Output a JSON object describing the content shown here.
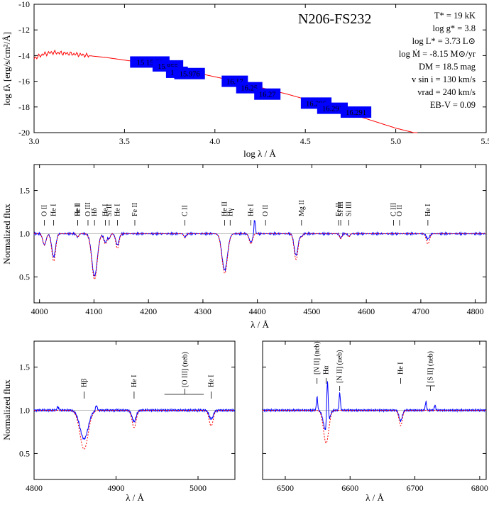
{
  "colors": {
    "model": "#ff0000",
    "observed": "#0000ff",
    "sed_box": "#0000ff",
    "sed_box_text": "#ff99cc",
    "continuum": "#aaaaaa"
  },
  "star": {
    "name": "N206-FS232"
  },
  "params": [
    "T* = 19 kK",
    "log g* = 3.8",
    "log L* = 3.73 L⊙",
    "log Ṁ = -8.15 M⊙/yr",
    "DM = 18.5 mag",
    "v sin i = 130 km/s",
    "vrad = 240 km/s",
    "EB-V = 0.09"
  ],
  "sed_labels": [
    "15",
    "15.72",
    "15.855",
    "16.2",
    "15.976",
    "16.17",
    "16.25",
    "16.27",
    "16.286",
    "16.291",
    "16.291"
  ],
  "line_labels_main": [
    "O II",
    "He I",
    "He I",
    "Fe II",
    "O III",
    "Hδ",
    "He I",
    "Si II",
    "He I",
    "Fe II",
    "C II",
    "He II",
    "Hγ",
    "He I",
    "O II",
    "Mg II",
    "Fe II",
    "Si III",
    "Si III",
    "C III",
    "O II",
    "He I"
  ],
  "line_labels_hb": [
    "Hβ",
    "He I",
    "[O III] (neb)",
    "He I"
  ],
  "line_labels_ha": [
    "[N II] (neb)",
    "Hα",
    "He I",
    "[N II] (neb)",
    "[S II] (neb)"
  ],
  "chart_data": [
    {
      "type": "line",
      "name": "sed",
      "xlabel": "log λ / Å",
      "ylabel": "log fλ [erg/s/cm²/Å]",
      "xlim": [
        3.0,
        5.5
      ],
      "ylim": [
        -20,
        -10
      ],
      "xticks": [
        "3.0",
        "3.5",
        "4.0",
        "4.5",
        "5.0",
        "5.5"
      ],
      "yticks": [
        "-10",
        "-12",
        "-14",
        "-16",
        "-18",
        "-20"
      ],
      "series": [
        {
          "x": [
            3.0,
            3.05,
            3.1,
            3.15,
            3.2,
            3.3,
            3.4,
            3.5,
            3.6,
            3.7,
            3.8,
            3.9,
            4.0,
            4.1,
            4.2,
            4.3,
            4.4,
            4.5,
            4.6,
            4.7,
            4.8,
            4.9,
            5.0,
            5.1,
            5.12
          ],
          "y": [
            -14.2,
            -13.9,
            -13.75,
            -13.8,
            -13.85,
            -14.0,
            -14.15,
            -14.35,
            -14.55,
            -14.8,
            -15.05,
            -15.35,
            -15.65,
            -15.95,
            -16.3,
            -16.65,
            -17.0,
            -17.4,
            -17.85,
            -18.3,
            -18.75,
            -19.2,
            -19.65,
            -20.0,
            -20.0
          ]
        }
      ],
      "photometry": [
        {
          "x": 3.64,
          "y": -14.5,
          "label": "15 15.72"
        },
        {
          "x": 3.74,
          "y": -14.8,
          "label": "15.855"
        },
        {
          "x": 3.79,
          "y": -15.3,
          "label": "16.2"
        },
        {
          "x": 3.86,
          "y": -15.4,
          "label": "15.976"
        },
        {
          "x": 4.11,
          "y": -16.0,
          "label": "16.17"
        },
        {
          "x": 4.19,
          "y": -16.5,
          "label": "16.25"
        },
        {
          "x": 4.29,
          "y": -17.0,
          "label": "16.27"
        },
        {
          "x": 4.56,
          "y": -17.7,
          "label": "16.286"
        },
        {
          "x": 4.65,
          "y": -18.1,
          "label": "16.291"
        },
        {
          "x": 4.78,
          "y": -18.4,
          "label": "16.291"
        }
      ]
    },
    {
      "type": "line",
      "name": "blue spectrum",
      "xlabel": "λ / Å",
      "ylabel": "Normalized flux",
      "xlim": [
        3990,
        4820
      ],
      "ylim": [
        0.2,
        1.8
      ],
      "xticks": [
        "4000",
        "4100",
        "4200",
        "4300",
        "4400",
        "4500",
        "4600",
        "4700",
        "4800"
      ],
      "yticks": [
        "0.5",
        "1.0",
        "1.5"
      ],
      "lines": [
        {
          "c": 4009,
          "w": 3,
          "dO": 0.13,
          "dM": 0.13
        },
        {
          "c": 4026,
          "w": 3.5,
          "dO": 0.27,
          "dM": 0.32
        },
        {
          "c": 4070,
          "w": 2,
          "dO": 0.04,
          "dM": 0.04
        },
        {
          "c": 4101,
          "w": 5,
          "dO": 0.49,
          "dM": 0.53
        },
        {
          "c": 4121,
          "w": 3,
          "dO": 0.1,
          "dM": 0.12
        },
        {
          "c": 4128,
          "w": 2,
          "dO": 0.05,
          "dM": 0.05
        },
        {
          "c": 4143,
          "w": 3,
          "dO": 0.13,
          "dM": 0.17
        },
        {
          "c": 4267,
          "w": 2,
          "dO": 0.04,
          "dM": 0.05
        },
        {
          "c": 4340,
          "w": 5,
          "dO": 0.42,
          "dM": 0.46
        },
        {
          "c": 4388,
          "w": 3,
          "dO": 0.1,
          "dM": 0.12
        },
        {
          "c": 4471,
          "w": 3.5,
          "dO": 0.25,
          "dM": 0.3
        },
        {
          "c": 4481,
          "w": 2,
          "dO": 0.03,
          "dM": 0.04
        },
        {
          "c": 4553,
          "w": 2,
          "dO": 0.05,
          "dM": 0.06
        },
        {
          "c": 4568,
          "w": 2,
          "dO": 0.03,
          "dM": 0.04
        },
        {
          "c": 4713,
          "w": 3,
          "dO": 0.06,
          "dM": 0.12
        }
      ]
    },
    {
      "type": "line",
      "name": "H-beta region",
      "xlabel": "λ / Å",
      "ylabel": "Normalized flux",
      "xlim": [
        4800,
        5045
      ],
      "ylim": [
        0.2,
        1.8
      ],
      "xticks": [
        "4800",
        "4900",
        "5000"
      ],
      "yticks": [
        "0.5",
        "1.0",
        "1.5"
      ],
      "lines": [
        {
          "c": 4861,
          "w": 5,
          "dO": 0.33,
          "dM": 0.45
        },
        {
          "c": 4922,
          "w": 2.5,
          "dO": 0.13,
          "dM": 0.2
        },
        {
          "c": 5016,
          "w": 2.5,
          "dO": 0.1,
          "dM": 0.18
        }
      ]
    },
    {
      "type": "line",
      "name": "H-alpha region",
      "xlabel": "λ / Å",
      "ylabel": "",
      "xlim": [
        6465,
        6810
      ],
      "ylim": [
        0.2,
        1.8
      ],
      "xticks": [
        "6500",
        "6600",
        "6700",
        "6800"
      ],
      "yticks": [],
      "lines": [
        {
          "c": 6563,
          "w": 4,
          "dO": 0.25,
          "dM": 0.38
        },
        {
          "c": 6678,
          "w": 2.5,
          "dO": 0.12,
          "dM": 0.18
        }
      ]
    }
  ]
}
